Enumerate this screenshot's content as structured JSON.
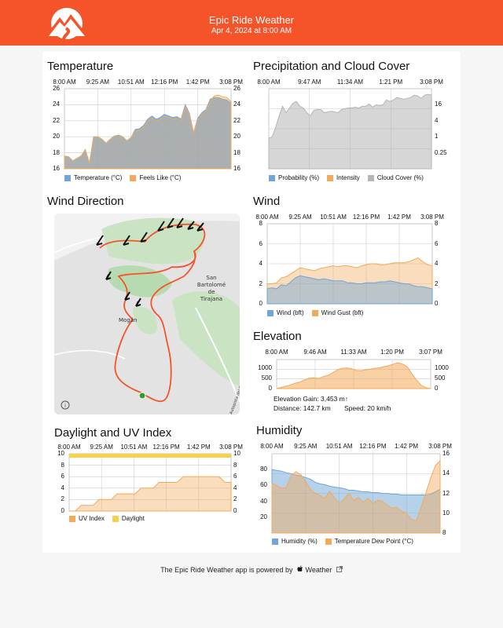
{
  "header": {
    "title": "Epic Ride Weather",
    "subtitle": "Apr 4, 2024 at 8:00 AM",
    "logo_icon": "mountain-road-logo-icon",
    "color": "#f5532a"
  },
  "temperature": {
    "title": "Temperature",
    "chart_data": {
      "type": "area",
      "x_ticks": [
        "8:00 AM",
        "9:25 AM",
        "10:51 AM",
        "12:16 PM",
        "1:42 PM",
        "3:08 PM"
      ],
      "ylim": [
        16,
        26
      ],
      "y_ticks": [
        "26",
        "24",
        "22",
        "20",
        "18",
        "16"
      ],
      "series": [
        {
          "name": "Temperature (°C)",
          "color": "#6ea6d8",
          "values": [
            17.6,
            17.5,
            17.0,
            17.3,
            17.6,
            18.4,
            16.7,
            20.0,
            20.0,
            19.7,
            19.2,
            19.7,
            20.1,
            20.2,
            20.0,
            19.5,
            19.9,
            20.9,
            21.0,
            21.4,
            22.2,
            22.6,
            22.2,
            22.4,
            22.8,
            22.6,
            22.4,
            22.5,
            22.2,
            24.0,
            22.9,
            20.5,
            22.3,
            23.0,
            23.4,
            24.7,
            24.9,
            24.9,
            24.7,
            24.6,
            24.2
          ]
        },
        {
          "name": "Feels Like (°C)",
          "color": "#f3a95a",
          "values": [
            17.6,
            17.5,
            17.0,
            17.3,
            17.6,
            18.4,
            16.7,
            19.9,
            20.0,
            19.7,
            19.2,
            19.7,
            20.1,
            20.1,
            20.0,
            19.5,
            19.9,
            20.7,
            20.8,
            21.2,
            22.0,
            22.4,
            22.0,
            22.2,
            22.6,
            22.4,
            22.2,
            22.3,
            22.0,
            23.8,
            22.7,
            20.5,
            22.1,
            22.8,
            23.2,
            24.5,
            25.1,
            25.2,
            25.0,
            24.9,
            24.4
          ]
        }
      ]
    }
  },
  "precip": {
    "title": "Precipitation and Cloud Cover",
    "chart_data": {
      "type": "area",
      "x_ticks": [
        "8:00 AM",
        "9:47 AM",
        "11:34 AM",
        "1:21 PM",
        "3:08 PM"
      ],
      "y_ticks_right": [
        "16",
        "4",
        "1",
        "0.25"
      ],
      "ylim": [
        0,
        100
      ],
      "series": [
        {
          "name": "Probability (%)",
          "color": "#6ea6d8",
          "values": []
        },
        {
          "name": "Intensity",
          "color": "#f3a95a",
          "values": []
        },
        {
          "name": "Cloud Cover (%)",
          "color": "#b5b5b5",
          "values": [
            38,
            40,
            52,
            66,
            78,
            70,
            76,
            82,
            84,
            78,
            76,
            70,
            66,
            73,
            74,
            74,
            70,
            71,
            72,
            71,
            70,
            74,
            75,
            76,
            76,
            77,
            76,
            78,
            78,
            81,
            77,
            80,
            79,
            80,
            86,
            84,
            86,
            89,
            88,
            87,
            88,
            89,
            92,
            91,
            88,
            92,
            93,
            92
          ]
        }
      ]
    }
  },
  "wind_direction": {
    "title": "Wind Direction",
    "map_labels": {
      "town1": "Mogán",
      "town2_l1": "San",
      "town2_l2": "Bartolomé",
      "town2_l3": "de",
      "town2_l4": "Tirajana",
      "road": "Autopista del Sur"
    },
    "info_icon": "info-circle-icon"
  },
  "wind": {
    "title": "Wind",
    "chart_data": {
      "type": "area",
      "x_ticks": [
        "8:00 AM",
        "9:25 AM",
        "10:51 AM",
        "12:16 PM",
        "1:42 PM",
        "3:08 PM"
      ],
      "ylim": [
        0,
        8
      ],
      "y_ticks": [
        "8",
        "6",
        "4",
        "2",
        "0"
      ],
      "series": [
        {
          "name": "Wind (bft)",
          "color": "#6ea6d8",
          "values": [
            1.5,
            1.6,
            1.5,
            1.9,
            1.8,
            2.2,
            2.6,
            2.8,
            2.7,
            2.6,
            2.5,
            2.4,
            2.5,
            2.4,
            2.3,
            2.3,
            2.3,
            2.1,
            2.1,
            2.0,
            2.0,
            2.1,
            2.1,
            2.1,
            2.2,
            2.2,
            2.3,
            2.2,
            2.1,
            2.0,
            2.0,
            1.8,
            1.7,
            1.7,
            1.6,
            1.5
          ]
        },
        {
          "name": "Wind Gust (bft)",
          "color": "#f3a95a",
          "values": [
            2.0,
            2.0,
            2.1,
            2.6,
            2.7,
            3.0,
            3.3,
            3.6,
            3.5,
            3.4,
            3.3,
            3.5,
            3.6,
            3.7,
            3.8,
            3.7,
            3.8,
            3.8,
            3.7,
            3.6,
            3.8,
            3.9,
            4.0,
            4.0,
            3.9,
            3.9,
            4.0,
            4.1,
            4.1,
            4.1,
            4.2,
            4.4,
            4.6,
            4.2,
            3.9,
            3.8
          ]
        }
      ]
    }
  },
  "elevation": {
    "title": "Elevation",
    "chart_data": {
      "type": "area",
      "x_ticks": [
        "8:00 AM",
        "9:46 AM",
        "11:33 AM",
        "1:20 PM",
        "3:07 PM"
      ],
      "ylim": [
        0,
        1400
      ],
      "y_ticks": [
        "1000",
        "500",
        "0"
      ],
      "series": [
        {
          "name": "",
          "color": "#f3a95a",
          "values": [
            0,
            60,
            120,
            180,
            260,
            320,
            420,
            500,
            520,
            480,
            580,
            640,
            760,
            900,
            980,
            1000,
            960,
            880,
            860,
            900,
            940,
            980,
            1000,
            1060,
            1100,
            1180,
            1240,
            1180,
            1050,
            700,
            400,
            150,
            40,
            0
          ]
        }
      ]
    },
    "stats": {
      "gain": "Elevation Gain: 3,453 m↑",
      "distance": "Distance: 142.7 km",
      "speed": "Speed: 20 km/h"
    }
  },
  "daylight_uv": {
    "title": "Daylight and UV Index",
    "chart_data": {
      "type": "area",
      "x_ticks": [
        "8:00 AM",
        "9:25 AM",
        "10:51 AM",
        "12:16 PM",
        "1:42 PM",
        "3:08 PM"
      ],
      "ylim": [
        0,
        10
      ],
      "y_ticks": [
        "10",
        "8",
        "6",
        "4",
        "2",
        "0"
      ],
      "series": [
        {
          "name": "UV Index",
          "color": "#f3a95a",
          "values": [
            0,
            0,
            1,
            1,
            1,
            2,
            2,
            2,
            3,
            3,
            3,
            3,
            4,
            4,
            4,
            5,
            5,
            5,
            5,
            6,
            6,
            6,
            6,
            6,
            6,
            6,
            5,
            5
          ]
        },
        {
          "name": "Daylight",
          "color": "#f5d24a",
          "values": [
            10,
            10,
            10,
            10,
            10,
            10,
            10,
            10,
            10,
            10,
            10,
            10,
            10,
            10,
            10,
            10,
            10,
            10,
            10,
            10,
            10,
            10,
            10,
            10,
            10,
            10,
            10,
            10
          ]
        }
      ]
    }
  },
  "humidity": {
    "title": "Humidity",
    "chart_data": {
      "type": "area",
      "x_ticks": [
        "8:00 AM",
        "9:25 AM",
        "10:51 AM",
        "12:16 PM",
        "1:42 PM",
        "3:08 PM"
      ],
      "y_ticks_left": [
        "80",
        "60",
        "40",
        "20"
      ],
      "y_ticks_right": [
        "16",
        "14",
        "12",
        "10",
        "8"
      ],
      "series": [
        {
          "name": "Humidity (%)",
          "color": "#6ea6d8",
          "values": [
            80,
            79,
            78,
            76,
            75,
            73,
            72,
            70,
            68,
            64,
            62,
            61,
            59,
            58,
            57,
            56,
            54,
            54,
            53,
            52,
            52,
            51,
            51,
            50,
            50,
            49,
            49,
            48,
            48,
            48,
            48,
            48,
            48,
            49,
            52,
            55
          ]
        },
        {
          "name": "Temperature Dew Point (°C)",
          "color": "#f3a95a",
          "values": [
            13.0,
            12.8,
            12.5,
            12.6,
            13.8,
            14.2,
            13.9,
            13.2,
            12.4,
            12.0,
            11.8,
            11.5,
            12.2,
            11.6,
            11.0,
            11.4,
            12.0,
            11.3,
            11.6,
            11.1,
            11.5,
            11.0,
            11.3,
            11.2,
            10.8,
            10.5,
            10.6,
            10.2,
            10.0,
            9.4,
            9.2,
            10.5,
            12.0,
            13.5,
            14.8,
            15.3
          ]
        }
      ]
    }
  },
  "footer": {
    "text": "The Epic Ride Weather app is powered by",
    "brand": "Weather",
    "apple_icon": "apple-logo-icon",
    "external_icon": "external-link-icon"
  }
}
